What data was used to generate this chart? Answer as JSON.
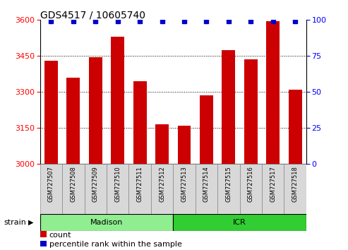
{
  "title": "GDS4517 / 10605740",
  "samples": [
    "GSM727507",
    "GSM727508",
    "GSM727509",
    "GSM727510",
    "GSM727511",
    "GSM727512",
    "GSM727513",
    "GSM727514",
    "GSM727515",
    "GSM727516",
    "GSM727517",
    "GSM727518"
  ],
  "bar_values": [
    3430,
    3360,
    3445,
    3530,
    3345,
    3165,
    3160,
    3285,
    3475,
    3435,
    3595,
    3310
  ],
  "percentile_values": [
    99,
    99,
    99,
    99,
    99,
    99,
    99,
    99,
    99,
    99,
    99,
    99
  ],
  "bar_color": "#cc0000",
  "dot_color": "#0000cc",
  "ylim_left": [
    3000,
    3600
  ],
  "ylim_right": [
    0,
    100
  ],
  "yticks_left": [
    3000,
    3150,
    3300,
    3450,
    3600
  ],
  "yticks_right": [
    0,
    25,
    50,
    75,
    100
  ],
  "grid_color": "black",
  "groups": [
    {
      "label": "Madison",
      "start": 0,
      "end": 6,
      "color": "#90ee90"
    },
    {
      "label": "ICR",
      "start": 6,
      "end": 12,
      "color": "#32cd32"
    }
  ],
  "group_label": "strain",
  "legend_items": [
    {
      "label": "count",
      "color": "#cc0000"
    },
    {
      "label": "percentile rank within the sample",
      "color": "#0000cc"
    }
  ],
  "title_fontsize": 10,
  "tick_fontsize": 8,
  "sample_fontsize": 6,
  "group_fontsize": 8,
  "legend_fontsize": 8,
  "bar_width": 0.6,
  "cell_color": "#d8d8d8",
  "cell_edge_color": "#888888"
}
